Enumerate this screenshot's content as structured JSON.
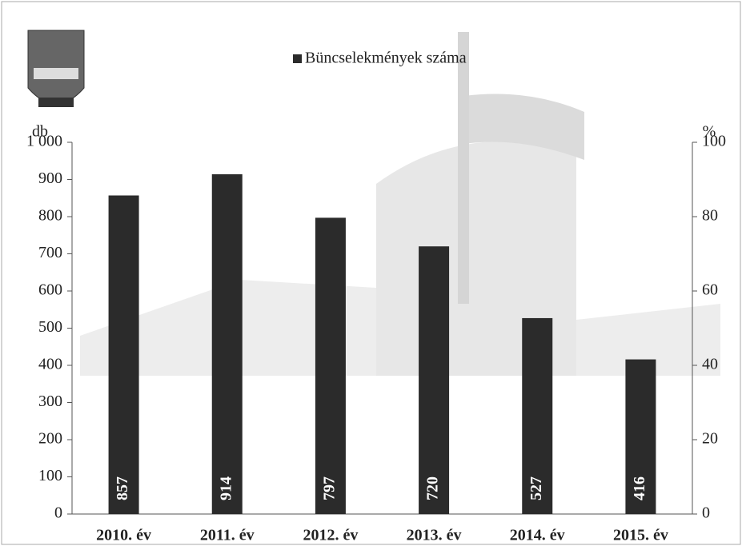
{
  "chart_data": {
    "type": "bar",
    "categories": [
      "2010. év",
      "2011. év",
      "2012. év",
      "2013. év",
      "2014. év",
      "2015. év"
    ],
    "series": [
      {
        "name": "Büncselekmények száma",
        "color": "#2b2b2b",
        "values": [
          857,
          914,
          797,
          720,
          527,
          416
        ]
      }
    ],
    "ylim": [
      0,
      1000
    ],
    "yticks": [
      0,
      100,
      200,
      300,
      400,
      500,
      600,
      700,
      800,
      900,
      {
        "value": 1000,
        "label": "1 000"
      }
    ],
    "y2lim": [
      0,
      100
    ],
    "y2ticks": [
      0,
      20,
      40,
      60,
      80,
      100
    ],
    "y_axis_label": "db",
    "y2_axis_label": "%",
    "legend": "top"
  }
}
